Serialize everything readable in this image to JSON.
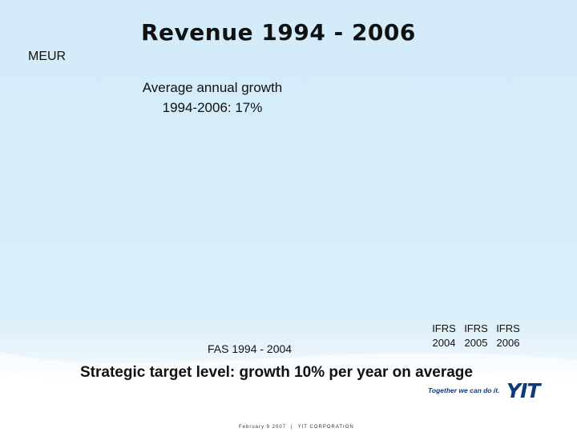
{
  "slide": {
    "title": "Revenue 1994 - 2006",
    "unit_label": "MEUR",
    "growth_note": {
      "line1": "Average annual growth",
      "line2": "1994-2006: 17%"
    },
    "period_fas": "FAS 1994 - 2004",
    "period_ifrs": {
      "standards": [
        "IFRS",
        "IFRS",
        "IFRS"
      ],
      "years": [
        "2004",
        "2005",
        "2006"
      ]
    },
    "strategic_target": "Strategic target level: growth 10% per year on average"
  },
  "branding": {
    "slogan": "Together we can do it.",
    "logo": "YIT",
    "logo_color": "#0d3b7a"
  },
  "footer": {
    "date": "February 9 2007",
    "separator": "|",
    "company": "YIT CORPORATION"
  },
  "colors": {
    "background": "#d6ecf8",
    "text": "#111111"
  }
}
